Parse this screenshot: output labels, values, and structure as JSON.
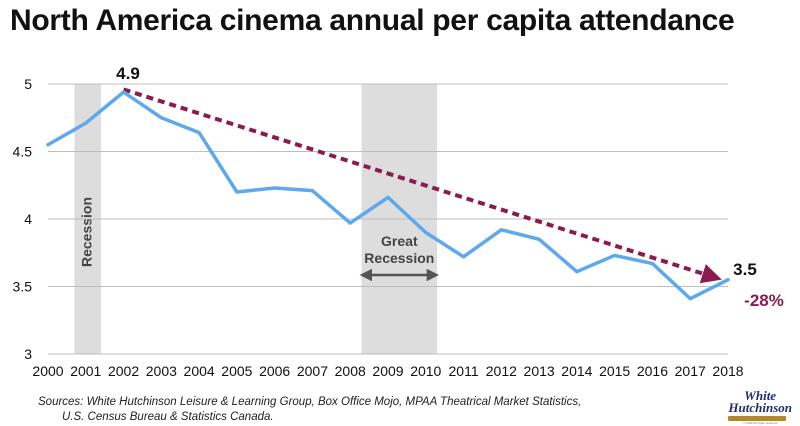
{
  "chart_data": {
    "type": "line",
    "title": "North America cinema annual per capita attendance",
    "x": [
      2000,
      2001,
      2002,
      2003,
      2004,
      2005,
      2006,
      2007,
      2008,
      2009,
      2010,
      2011,
      2012,
      2013,
      2014,
      2015,
      2016,
      2017,
      2018
    ],
    "x_tick_labels": [
      "2000",
      "2001",
      "2002",
      "2003",
      "2004",
      "2005",
      "2006",
      "2007",
      "2008",
      "2009",
      "2010",
      "2011",
      "2012",
      "2013",
      "2014",
      "2015",
      "2016",
      "2017",
      "2018"
    ],
    "series": [
      {
        "values": [
          4.55,
          4.71,
          4.94,
          4.75,
          4.64,
          4.2,
          4.23,
          4.21,
          3.97,
          4.16,
          3.9,
          3.72,
          3.92,
          3.85,
          3.61,
          3.73,
          3.67,
          3.41,
          3.55
        ],
        "color": "#5ea8ee"
      }
    ],
    "ylim": [
      3,
      5
    ],
    "y_ticks": [
      3,
      3.5,
      4,
      4.5,
      5
    ],
    "y_tick_labels": [
      "3",
      "3.5",
      "4",
      "4.5",
      "5"
    ],
    "grid": true,
    "trend": {
      "from_x": 2002,
      "from_y": 4.96,
      "to_x": 2018,
      "to_y": 3.53,
      "color": "#8b1a4e"
    },
    "shaded_regions": [
      {
        "x_start": 2000.7,
        "x_end": 2001.4,
        "label": "Recession",
        "label_rotated": true
      },
      {
        "x_start": 2008.3,
        "x_end": 2010.3,
        "label_lines": [
          "Great",
          "Recession"
        ]
      }
    ],
    "annotations": {
      "start_value": "4.9",
      "end_value": "3.5",
      "change": "-28%",
      "change_color": "#8b1a4e"
    },
    "sources_line1": "Sources:  White Hutchinson Leisure & Learning Group, Box Office Mojo, MPAA Theatrical Market Statistics,",
    "sources_line2": "U.S. Census Bureau & Statistics Canada.",
    "logo": {
      "line1": "White",
      "line2": "Hutchinson",
      "tagline": "© 2019 All rights reserved"
    }
  }
}
